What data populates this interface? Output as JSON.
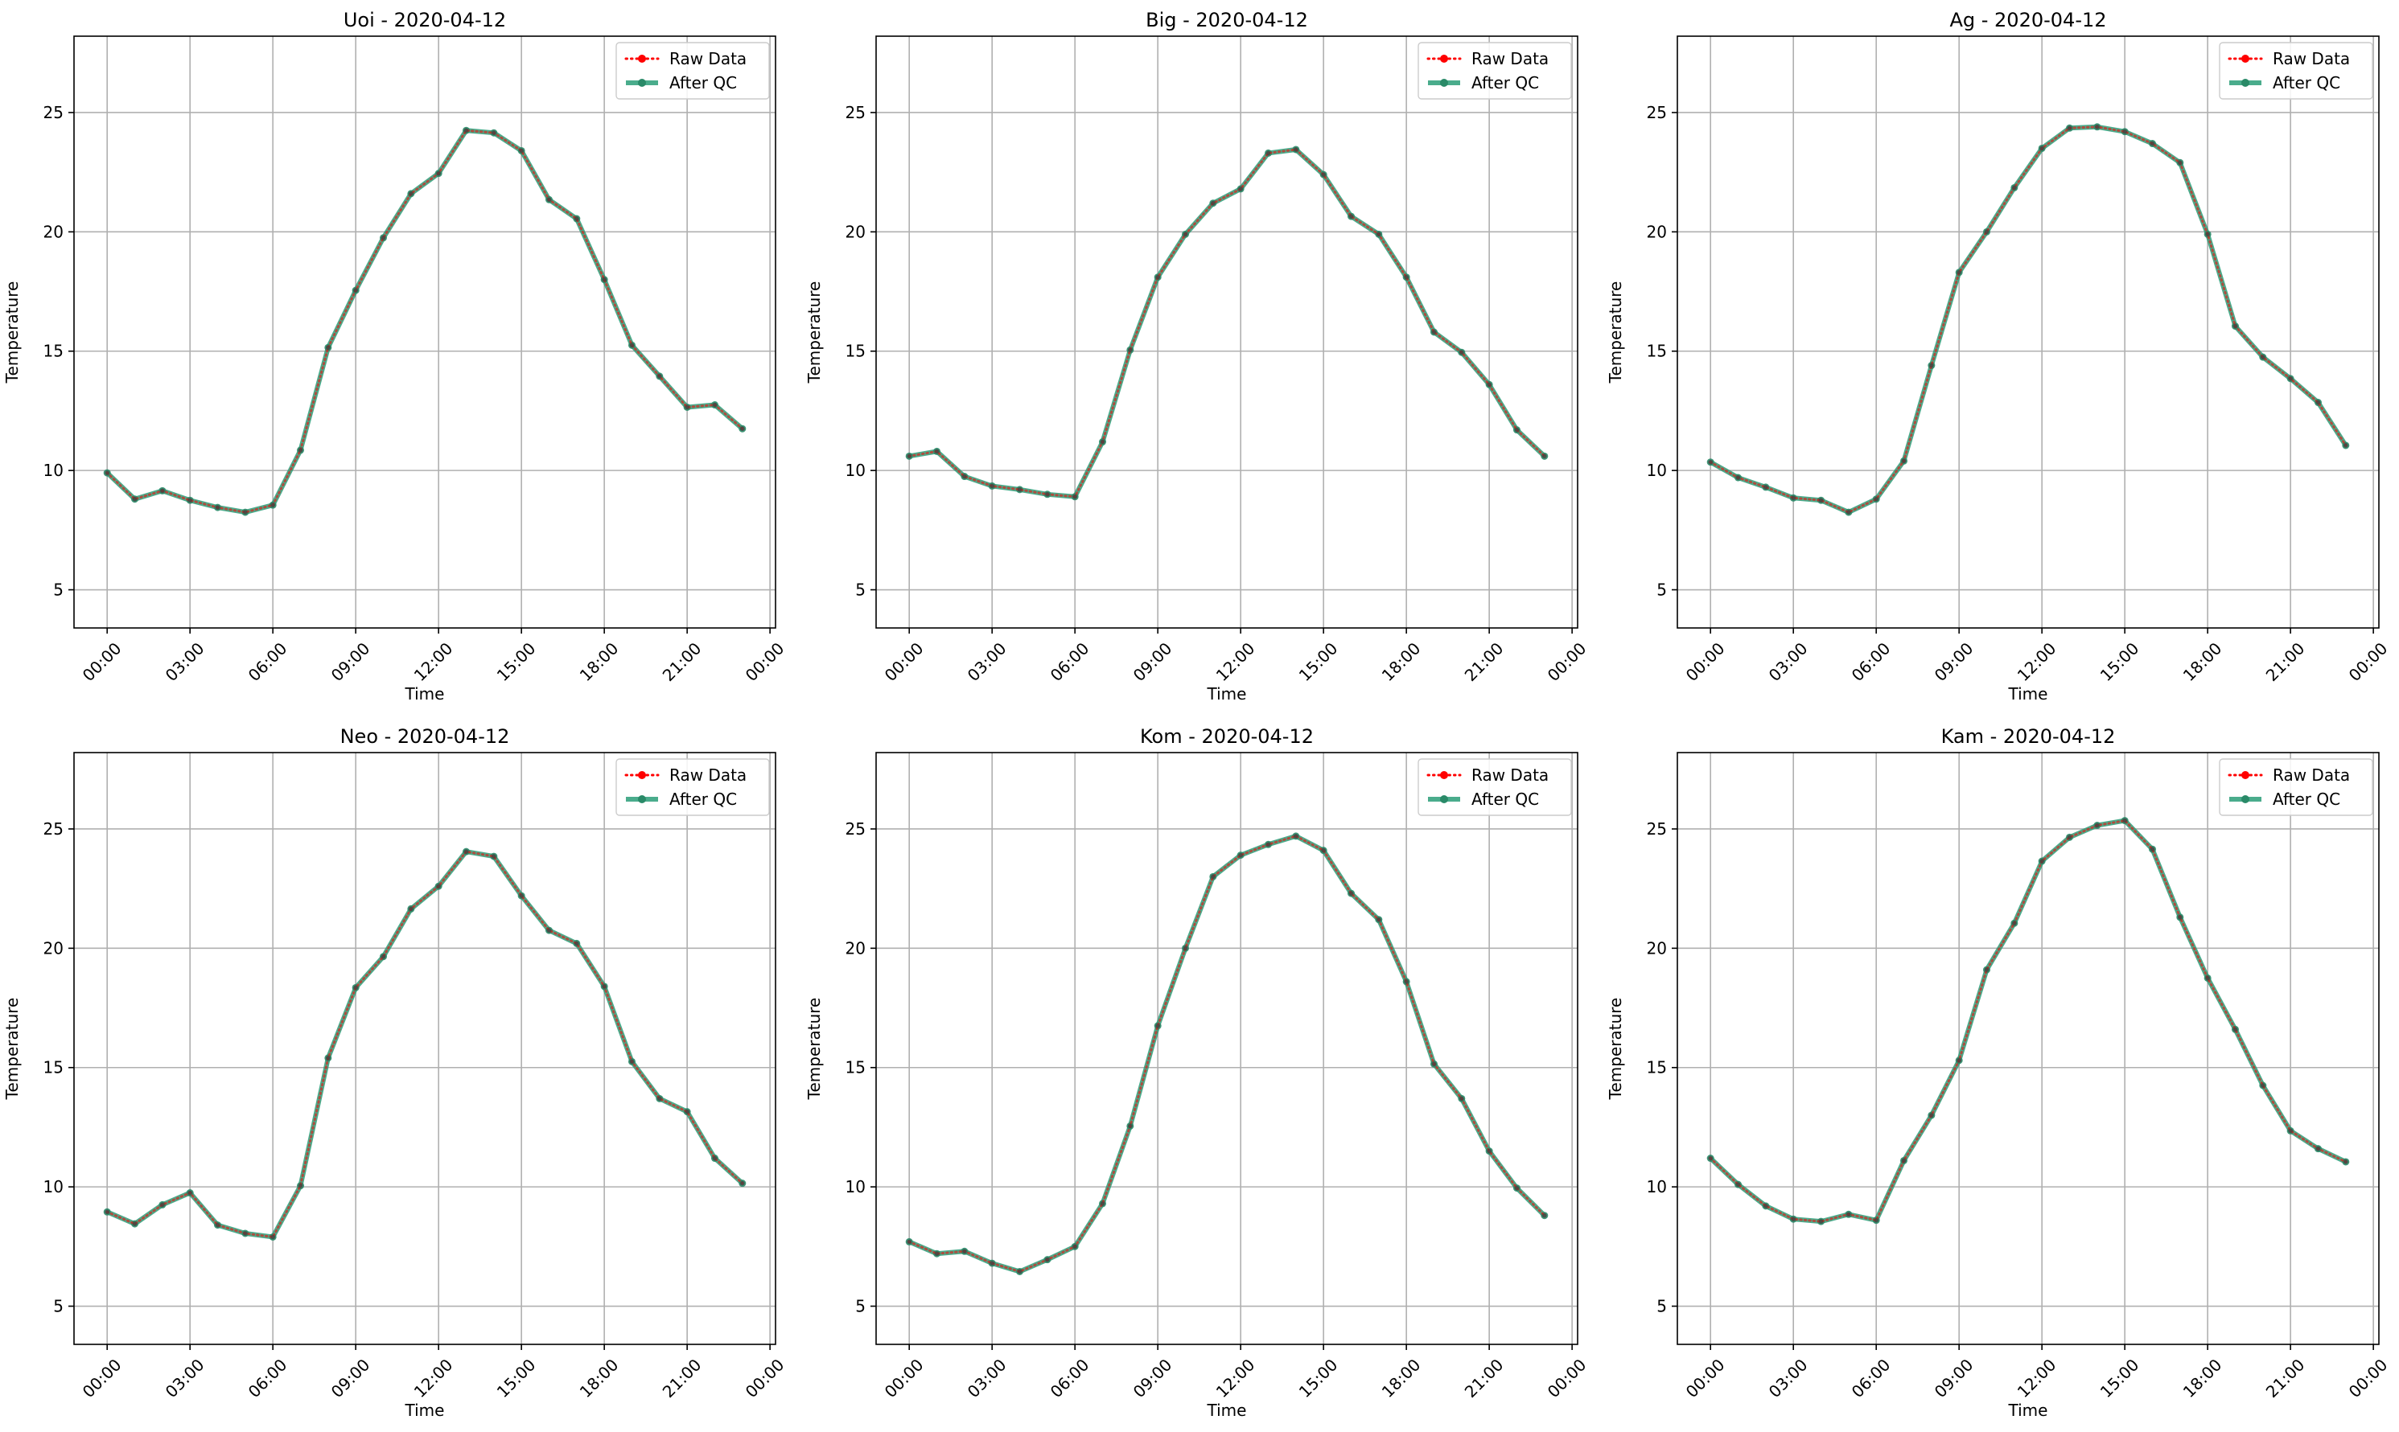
{
  "chart_data": [
    {
      "type": "line",
      "title": "Uoi - 2020-04-12",
      "xlabel": "Time",
      "ylabel": "Temperature",
      "x": [
        "00:00",
        "01:00",
        "02:00",
        "03:00",
        "04:00",
        "05:00",
        "06:00",
        "07:00",
        "08:00",
        "09:00",
        "10:00",
        "11:00",
        "12:00",
        "13:00",
        "14:00",
        "15:00",
        "16:00",
        "17:00",
        "18:00",
        "19:00",
        "20:00",
        "21:00",
        "22:00",
        "23:00"
      ],
      "xticks": [
        "00:00",
        "03:00",
        "06:00",
        "09:00",
        "12:00",
        "15:00",
        "18:00",
        "21:00",
        "00:00"
      ],
      "xlim": [
        -1.2,
        24.2
      ],
      "ylim": [
        3.4,
        28.2
      ],
      "yticks": [
        5,
        10,
        15,
        20,
        25
      ],
      "grid": true,
      "legend_position": "top-right",
      "series": [
        {
          "name": "Raw Data",
          "color": "#ff0000",
          "style": "dotted",
          "marker": "circle",
          "values": [
            9.9,
            8.8,
            9.15,
            8.75,
            8.45,
            8.25,
            8.55,
            10.85,
            15.15,
            17.55,
            19.75,
            21.6,
            22.45,
            24.25,
            24.15,
            23.4,
            21.35,
            20.55,
            18.0,
            15.25,
            13.95,
            12.65,
            12.75,
            11.75
          ]
        },
        {
          "name": "After QC",
          "color": "#2a9d78",
          "style": "solid",
          "marker": "circle",
          "values": [
            9.9,
            8.8,
            9.15,
            8.75,
            8.45,
            8.25,
            8.55,
            10.85,
            15.15,
            17.55,
            19.75,
            21.6,
            22.45,
            24.25,
            24.15,
            23.4,
            21.35,
            20.55,
            18.0,
            15.25,
            13.95,
            12.65,
            12.75,
            11.75
          ]
        }
      ]
    },
    {
      "type": "line",
      "title": "Big - 2020-04-12",
      "xlabel": "Time",
      "ylabel": "Temperature",
      "x": [
        "00:00",
        "01:00",
        "02:00",
        "03:00",
        "04:00",
        "05:00",
        "06:00",
        "07:00",
        "08:00",
        "09:00",
        "10:00",
        "11:00",
        "12:00",
        "13:00",
        "14:00",
        "15:00",
        "16:00",
        "17:00",
        "18:00",
        "19:00",
        "20:00",
        "21:00",
        "22:00",
        "23:00"
      ],
      "xticks": [
        "00:00",
        "03:00",
        "06:00",
        "09:00",
        "12:00",
        "15:00",
        "18:00",
        "21:00",
        "00:00"
      ],
      "xlim": [
        -1.2,
        24.2
      ],
      "ylim": [
        3.4,
        28.2
      ],
      "yticks": [
        5,
        10,
        15,
        20,
        25
      ],
      "grid": true,
      "legend_position": "top-right",
      "series": [
        {
          "name": "Raw Data",
          "color": "#ff0000",
          "style": "dotted",
          "marker": "circle",
          "values": [
            10.6,
            10.8,
            9.75,
            9.35,
            9.2,
            9.0,
            8.9,
            11.2,
            15.05,
            18.1,
            19.9,
            21.2,
            21.8,
            23.3,
            23.45,
            22.4,
            20.65,
            19.9,
            18.1,
            15.8,
            14.95,
            13.6,
            11.7,
            10.6
          ]
        },
        {
          "name": "After QC",
          "color": "#2a9d78",
          "style": "solid",
          "marker": "circle",
          "values": [
            10.6,
            10.8,
            9.75,
            9.35,
            9.2,
            9.0,
            8.9,
            11.2,
            15.05,
            18.1,
            19.9,
            21.2,
            21.8,
            23.3,
            23.45,
            22.4,
            20.65,
            19.9,
            18.1,
            15.8,
            14.95,
            13.6,
            11.7,
            10.6
          ]
        }
      ]
    },
    {
      "type": "line",
      "title": "Ag - 2020-04-12",
      "xlabel": "Time",
      "ylabel": "Temperature",
      "x": [
        "00:00",
        "01:00",
        "02:00",
        "03:00",
        "04:00",
        "05:00",
        "06:00",
        "07:00",
        "08:00",
        "09:00",
        "10:00",
        "11:00",
        "12:00",
        "13:00",
        "14:00",
        "15:00",
        "16:00",
        "17:00",
        "18:00",
        "19:00",
        "20:00",
        "21:00",
        "22:00",
        "23:00"
      ],
      "xticks": [
        "00:00",
        "03:00",
        "06:00",
        "09:00",
        "12:00",
        "15:00",
        "18:00",
        "21:00",
        "00:00"
      ],
      "xlim": [
        -1.2,
        24.2
      ],
      "ylim": [
        3.4,
        28.2
      ],
      "yticks": [
        5,
        10,
        15,
        20,
        25
      ],
      "grid": true,
      "legend_position": "top-right",
      "series": [
        {
          "name": "Raw Data",
          "color": "#ff0000",
          "style": "dotted",
          "marker": "circle",
          "values": [
            10.35,
            9.7,
            9.3,
            8.85,
            8.75,
            8.25,
            8.8,
            10.4,
            14.4,
            18.3,
            20.0,
            21.85,
            23.5,
            24.35,
            24.4,
            24.2,
            23.7,
            22.9,
            19.9,
            16.05,
            14.75,
            13.85,
            12.85,
            11.05
          ]
        },
        {
          "name": "After QC",
          "color": "#2a9d78",
          "style": "solid",
          "marker": "circle",
          "values": [
            10.35,
            9.7,
            9.3,
            8.85,
            8.75,
            8.25,
            8.8,
            10.4,
            14.4,
            18.3,
            20.0,
            21.85,
            23.5,
            24.35,
            24.4,
            24.2,
            23.7,
            22.9,
            19.9,
            16.05,
            14.75,
            13.85,
            12.85,
            11.05
          ]
        }
      ]
    },
    {
      "type": "line",
      "title": "Neo - 2020-04-12",
      "xlabel": "Time",
      "ylabel": "Temperature",
      "x": [
        "00:00",
        "01:00",
        "02:00",
        "03:00",
        "04:00",
        "05:00",
        "06:00",
        "07:00",
        "08:00",
        "09:00",
        "10:00",
        "11:00",
        "12:00",
        "13:00",
        "14:00",
        "15:00",
        "16:00",
        "17:00",
        "18:00",
        "19:00",
        "20:00",
        "21:00",
        "22:00",
        "23:00"
      ],
      "xticks": [
        "00:00",
        "03:00",
        "06:00",
        "09:00",
        "12:00",
        "15:00",
        "18:00",
        "21:00",
        "00:00"
      ],
      "xlim": [
        -1.2,
        24.2
      ],
      "ylim": [
        3.4,
        28.2
      ],
      "yticks": [
        5,
        10,
        15,
        20,
        25
      ],
      "grid": true,
      "legend_position": "top-right",
      "series": [
        {
          "name": "Raw Data",
          "color": "#ff0000",
          "style": "dotted",
          "marker": "circle",
          "values": [
            8.95,
            8.45,
            9.25,
            9.75,
            8.4,
            8.05,
            7.9,
            10.05,
            15.4,
            18.35,
            19.65,
            21.65,
            22.6,
            24.05,
            23.85,
            22.2,
            20.75,
            20.2,
            18.4,
            15.25,
            13.7,
            13.15,
            11.2,
            10.15
          ]
        },
        {
          "name": "After QC",
          "color": "#2a9d78",
          "style": "solid",
          "marker": "circle",
          "values": [
            8.95,
            8.45,
            9.25,
            9.75,
            8.4,
            8.05,
            7.9,
            10.05,
            15.4,
            18.35,
            19.65,
            21.65,
            22.6,
            24.05,
            23.85,
            22.2,
            20.75,
            20.2,
            18.4,
            15.25,
            13.7,
            13.15,
            11.2,
            10.15
          ]
        }
      ]
    },
    {
      "type": "line",
      "title": "Kom - 2020-04-12",
      "xlabel": "Time",
      "ylabel": "Temperature",
      "x": [
        "00:00",
        "01:00",
        "02:00",
        "03:00",
        "04:00",
        "05:00",
        "06:00",
        "07:00",
        "08:00",
        "09:00",
        "10:00",
        "11:00",
        "12:00",
        "13:00",
        "14:00",
        "15:00",
        "16:00",
        "17:00",
        "18:00",
        "19:00",
        "20:00",
        "21:00",
        "22:00",
        "23:00"
      ],
      "xticks": [
        "00:00",
        "03:00",
        "06:00",
        "09:00",
        "12:00",
        "15:00",
        "18:00",
        "21:00",
        "00:00"
      ],
      "xlim": [
        -1.2,
        24.2
      ],
      "ylim": [
        3.4,
        28.2
      ],
      "yticks": [
        5,
        10,
        15,
        20,
        25
      ],
      "grid": true,
      "legend_position": "top-right",
      "series": [
        {
          "name": "Raw Data",
          "color": "#ff0000",
          "style": "dotted",
          "marker": "circle",
          "values": [
            7.7,
            7.2,
            7.3,
            6.8,
            6.45,
            6.95,
            7.5,
            9.3,
            12.55,
            16.75,
            20.0,
            23.0,
            23.9,
            24.35,
            24.7,
            24.1,
            22.3,
            21.2,
            18.6,
            15.15,
            13.7,
            11.5,
            9.95,
            8.8
          ]
        },
        {
          "name": "After QC",
          "color": "#2a9d78",
          "style": "solid",
          "marker": "circle",
          "values": [
            7.7,
            7.2,
            7.3,
            6.8,
            6.45,
            6.95,
            7.5,
            9.3,
            12.55,
            16.75,
            20.0,
            23.0,
            23.9,
            24.35,
            24.7,
            24.1,
            22.3,
            21.2,
            18.6,
            15.15,
            13.7,
            11.5,
            9.95,
            8.8
          ]
        }
      ]
    },
    {
      "type": "line",
      "title": "Kam - 2020-04-12",
      "xlabel": "Time",
      "ylabel": "Temperature",
      "x": [
        "00:00",
        "01:00",
        "02:00",
        "03:00",
        "04:00",
        "05:00",
        "06:00",
        "07:00",
        "08:00",
        "09:00",
        "10:00",
        "11:00",
        "12:00",
        "13:00",
        "14:00",
        "15:00",
        "16:00",
        "17:00",
        "18:00",
        "19:00",
        "20:00",
        "21:00",
        "22:00",
        "23:00"
      ],
      "xticks": [
        "00:00",
        "03:00",
        "06:00",
        "09:00",
        "12:00",
        "15:00",
        "18:00",
        "21:00",
        "00:00"
      ],
      "xlim": [
        -1.2,
        24.2
      ],
      "ylim": [
        3.4,
        28.2
      ],
      "yticks": [
        5,
        10,
        15,
        20,
        25
      ],
      "grid": true,
      "legend_position": "top-right",
      "series": [
        {
          "name": "Raw Data",
          "color": "#ff0000",
          "style": "dotted",
          "marker": "circle",
          "values": [
            11.2,
            10.1,
            9.2,
            8.65,
            8.55,
            8.85,
            8.6,
            11.1,
            13.0,
            15.3,
            19.1,
            21.05,
            23.65,
            24.65,
            25.15,
            25.35,
            24.15,
            21.3,
            18.75,
            16.6,
            14.25,
            12.35,
            11.6,
            11.05
          ]
        },
        {
          "name": "After QC",
          "color": "#2a9d78",
          "style": "solid",
          "marker": "circle",
          "values": [
            11.2,
            10.1,
            9.2,
            8.65,
            8.55,
            8.85,
            8.6,
            11.1,
            13.0,
            15.3,
            19.1,
            21.05,
            23.65,
            24.65,
            25.15,
            25.35,
            24.15,
            21.3,
            18.75,
            16.6,
            14.25,
            12.35,
            11.6,
            11.05
          ]
        }
      ]
    }
  ]
}
